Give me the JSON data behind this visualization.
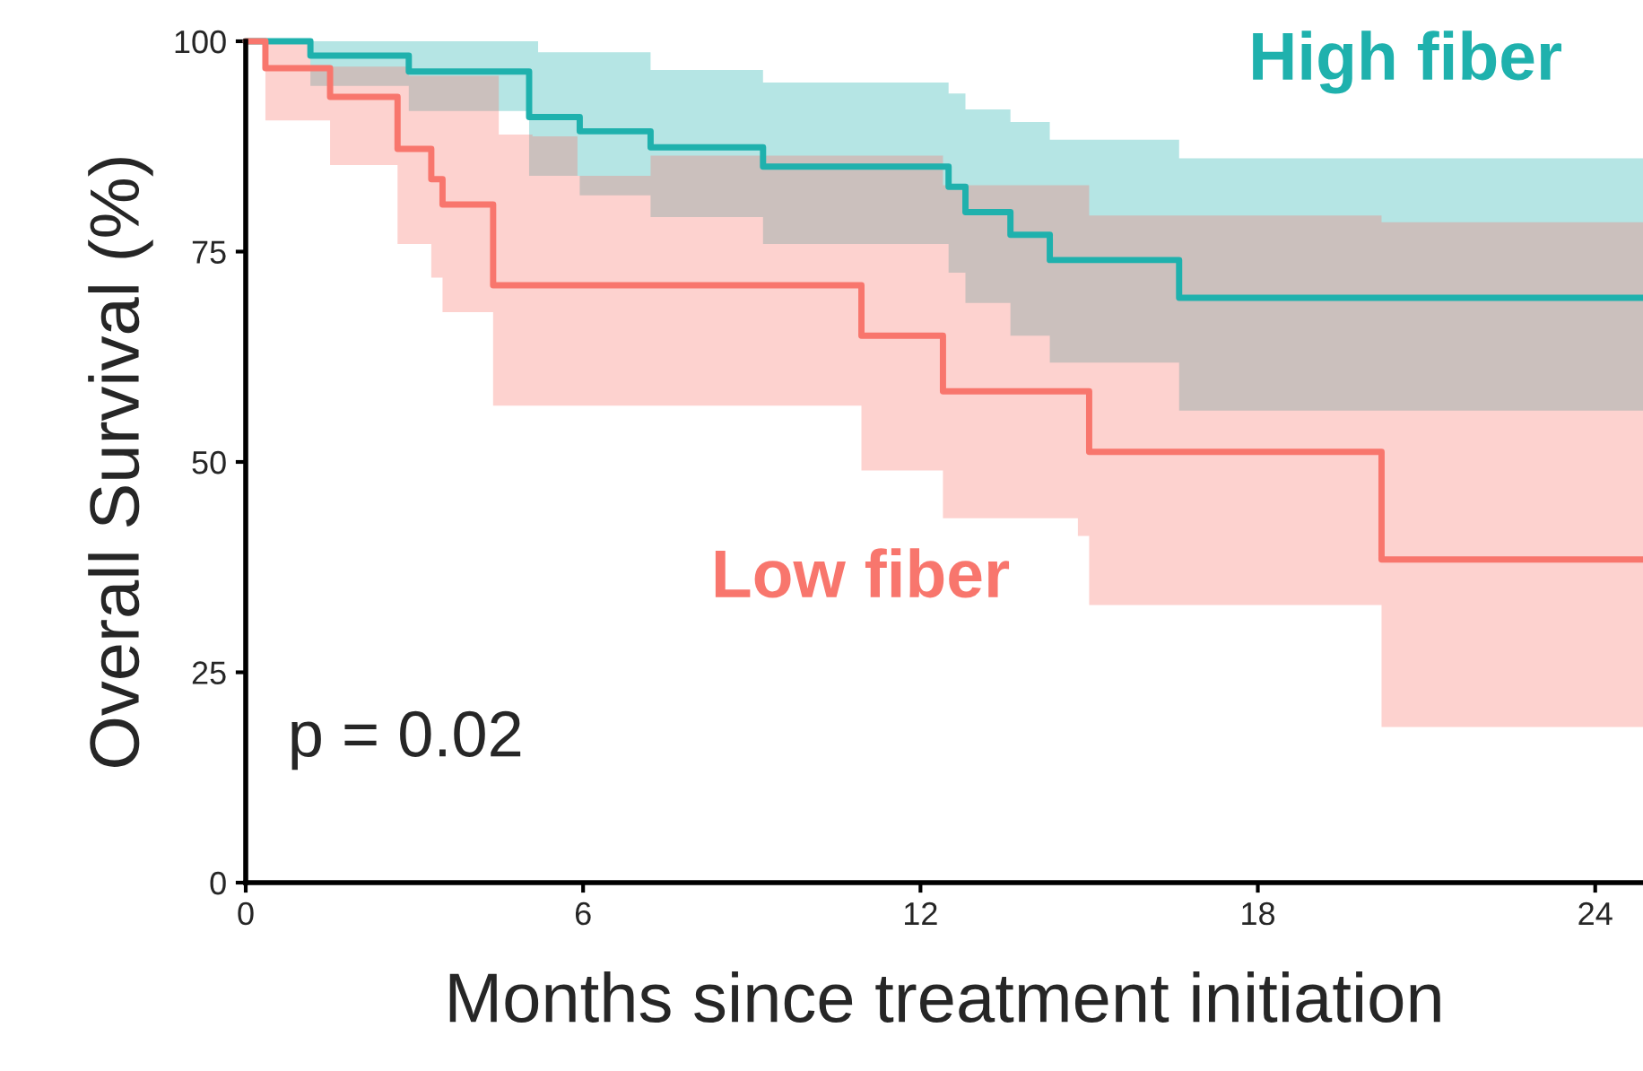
{
  "chart_data": {
    "type": "step",
    "xlabel": "Months since treatment initiation",
    "ylabel": "Overall Survival (%)",
    "xlim": [
      0,
      24.85
    ],
    "ylim": [
      0,
      100
    ],
    "xticks": [
      0,
      6,
      12,
      18,
      24
    ],
    "yticks": [
      0,
      25,
      50,
      75,
      100
    ],
    "grid": false,
    "series": [
      {
        "name": "High fiber",
        "color": "#1fb1ad",
        "x": [
          0,
          1.15,
          2.9,
          4.5,
          5.04,
          5.2,
          5.94,
          7.2,
          9.2,
          12.5,
          12.8,
          13.6,
          14.3,
          16.6,
          24.85
        ],
        "values": [
          100,
          98.3,
          96.4,
          96.4,
          91.0,
          91.0,
          89.3,
          87.4,
          85.1,
          82.7,
          79.7,
          77.0,
          74.0,
          69.5,
          69.5
        ],
        "upper": [
          100,
          100,
          100,
          100,
          100,
          98.7,
          98.7,
          96.6,
          95.1,
          93.8,
          91.9,
          90.4,
          88.3,
          86.1,
          86.1
        ],
        "lower": [
          100,
          94.7,
          91.7,
          91.7,
          84.0,
          84.0,
          81.7,
          79.1,
          75.9,
          72.5,
          68.9,
          65.0,
          61.8,
          56.1,
          56.1
        ]
      },
      {
        "name": "Low fiber",
        "color": "#f8766d",
        "x": [
          0,
          0.35,
          1.15,
          1.5,
          2.7,
          2.9,
          3.3,
          3.5,
          4.4,
          4.5,
          5.1,
          5.9,
          7.2,
          10.95,
          12.4,
          14.8,
          15.0,
          20.2,
          24.85
        ],
        "values": [
          100,
          96.8,
          96.8,
          93.4,
          87.2,
          87.2,
          83.6,
          80.6,
          71.0,
          71.0,
          71.0,
          71.0,
          71.0,
          65.0,
          58.4,
          58.4,
          51.2,
          38.4,
          38.4
        ],
        "upper": [
          100,
          100,
          97.0,
          97.0,
          97.0,
          95.9,
          95.9,
          95.9,
          95.9,
          88.9,
          88.7,
          84.0,
          86.4,
          86.4,
          82.9,
          82.9,
          79.3,
          78.5,
          78.5
        ],
        "lower": [
          100,
          90.6,
          90.6,
          85.3,
          75.9,
          75.9,
          71.9,
          67.8,
          56.7,
          56.7,
          56.7,
          56.7,
          56.7,
          49.0,
          43.3,
          41.2,
          33.0,
          18.5,
          18.5
        ]
      }
    ],
    "annotations": [
      "p = 0.02"
    ]
  }
}
